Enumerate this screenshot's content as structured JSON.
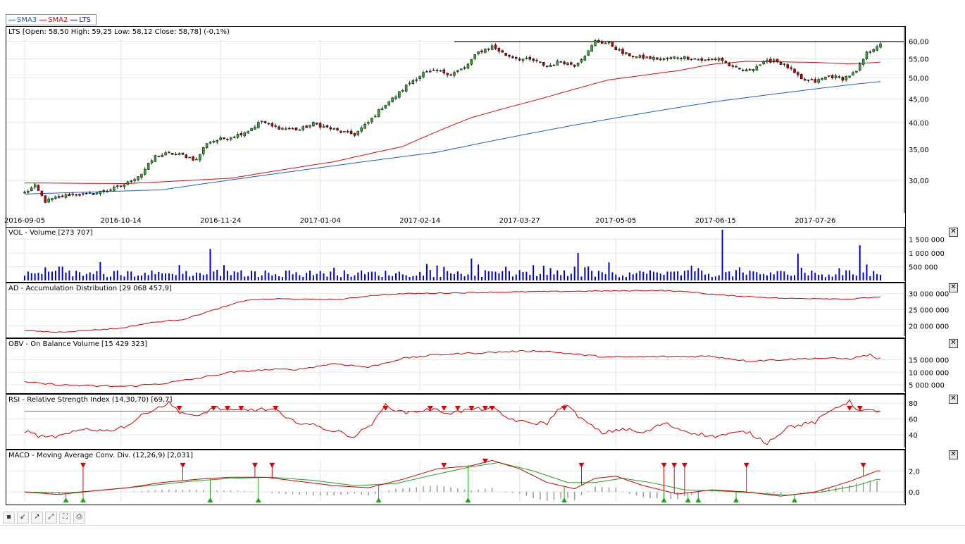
{
  "legend": [
    {
      "name": "SMA3",
      "color": "#1f5fbf"
    },
    {
      "name": "SMA2",
      "color": "#d01010"
    },
    {
      "name": "LTS",
      "color": "#1010a0"
    }
  ],
  "colors": {
    "up": "#33aa33",
    "down": "#cc0000",
    "sma_fast": "#1f5fbf",
    "sma_slow": "#d01010",
    "volume": "#0000cc",
    "line": "#cc0000",
    "macd_signal": "#22a022",
    "histogram": "#999999",
    "marker_up": "#22a022",
    "marker_down": "#dd0000"
  },
  "toolbar": {
    "icons": [
      "save-icon",
      "zoom-out-icon",
      "zoom-in-icon",
      "zoom-reset-icon",
      "fullscreen-icon",
      "print-icon"
    ]
  },
  "chart_data": [
    {
      "type": "candlestick",
      "title": "LTS [Open: 58,50  High: 59,25  Low: 58,12  Close: 58,78] (-0,1%)",
      "x_ticks": [
        "2016-09-05",
        "2016-10-14",
        "2016-11-24",
        "2017-01-04",
        "2017-02-14",
        "2017-03-27",
        "2017-05-05",
        "2017-06-15",
        "2017-07-26"
      ],
      "y_ticks": [
        "60,00",
        "55,00",
        "50,00",
        "45,00",
        "40,00",
        "35,00",
        "30,00"
      ],
      "y_scale": "log",
      "ylim": [
        25.5,
        64.5
      ],
      "resistance": 59.9,
      "close_anchors": [
        [
          0,
          28.2
        ],
        [
          3,
          29.1
        ],
        [
          6,
          27.0
        ],
        [
          10,
          27.6
        ],
        [
          14,
          28.0
        ],
        [
          18,
          27.9
        ],
        [
          22,
          28.3
        ],
        [
          26,
          28.8
        ],
        [
          30,
          29.6
        ],
        [
          34,
          31.0
        ],
        [
          38,
          33.8
        ],
        [
          42,
          34.3
        ],
        [
          46,
          34.0
        ],
        [
          50,
          33.2
        ],
        [
          53,
          36.2
        ],
        [
          57,
          36.8
        ],
        [
          61,
          37.4
        ],
        [
          65,
          38.4
        ],
        [
          69,
          40.3
        ],
        [
          72,
          39.2
        ],
        [
          76,
          38.8
        ],
        [
          80,
          38.6
        ],
        [
          84,
          39.8
        ],
        [
          88,
          39.0
        ],
        [
          92,
          38.2
        ],
        [
          96,
          37.7
        ],
        [
          100,
          40.0
        ],
        [
          104,
          43.2
        ],
        [
          108,
          45.6
        ],
        [
          112,
          48.8
        ],
        [
          116,
          51.2
        ],
        [
          120,
          51.7
        ],
        [
          124,
          51.0
        ],
        [
          128,
          52.5
        ],
        [
          132,
          56.8
        ],
        [
          136,
          58.5
        ],
        [
          140,
          56.0
        ],
        [
          144,
          55.0
        ],
        [
          148,
          54.5
        ],
        [
          152,
          53.0
        ],
        [
          156,
          54.3
        ],
        [
          160,
          53.3
        ],
        [
          164,
          57.0
        ],
        [
          166,
          60.0
        ],
        [
          170,
          59.3
        ],
        [
          174,
          56.5
        ],
        [
          178,
          55.5
        ],
        [
          182,
          55.2
        ],
        [
          186,
          54.8
        ],
        [
          190,
          55.5
        ],
        [
          194,
          55.2
        ],
        [
          198,
          54.5
        ],
        [
          202,
          55.2
        ],
        [
          206,
          52.5
        ],
        [
          210,
          51.7
        ],
        [
          214,
          53.5
        ],
        [
          218,
          54.8
        ],
        [
          222,
          52.7
        ],
        [
          226,
          49.5
        ],
        [
          230,
          49.0
        ],
        [
          234,
          50.5
        ],
        [
          238,
          49.8
        ],
        [
          242,
          51.5
        ],
        [
          245,
          56.5
        ],
        [
          248,
          58.7
        ]
      ],
      "series": [
        {
          "name": "SMA3",
          "color": "#1f5fbf",
          "anchors": [
            [
              0,
              28.0
            ],
            [
              40,
              28.6
            ],
            [
              80,
              31.5
            ],
            [
              120,
              34.5
            ],
            [
              160,
              39.5
            ],
            [
              200,
              44.3
            ],
            [
              240,
              48.3
            ],
            [
              248,
              49.0
            ]
          ]
        },
        {
          "name": "SMA2",
          "color": "#d01010",
          "anchors": [
            [
              0,
              29.6
            ],
            [
              30,
              29.5
            ],
            [
              60,
              30.3
            ],
            [
              90,
              32.9
            ],
            [
              110,
              35.5
            ],
            [
              130,
              41.0
            ],
            [
              150,
              45.0
            ],
            [
              170,
              49.5
            ],
            [
              190,
              51.8
            ],
            [
              200,
              53.5
            ],
            [
              210,
              54.3
            ],
            [
              230,
              54.0
            ],
            [
              240,
              53.6
            ],
            [
              248,
              54.0
            ]
          ]
        }
      ]
    },
    {
      "type": "bar",
      "title": "VOL - Volume [273 707]",
      "y_ticks": [
        "1 500 000",
        "1 000 000",
        "500 000"
      ],
      "ylim": [
        0,
        1900000
      ],
      "spikes": [
        [
          6,
          480000
        ],
        [
          54,
          1150000
        ],
        [
          130,
          800000
        ],
        [
          161,
          1000000
        ],
        [
          163,
          480000
        ],
        [
          203,
          1850000
        ],
        [
          225,
          980000
        ],
        [
          243,
          1280000
        ],
        [
          245,
          580000
        ]
      ]
    },
    {
      "type": "line",
      "title": "AD - Accumulation Distribution [29 068 457,9]",
      "y_ticks": [
        "30 000 000",
        "25 000 000",
        "20 000 000"
      ],
      "ylim": [
        17000000,
        33000000
      ],
      "anchors": [
        [
          0,
          18.5
        ],
        [
          10,
          18.0
        ],
        [
          20,
          18.6
        ],
        [
          30,
          19.2
        ],
        [
          40,
          21.0
        ],
        [
          50,
          22.0
        ],
        [
          60,
          25.0
        ],
        [
          70,
          28.0
        ],
        [
          80,
          28.4
        ],
        [
          90,
          28.2
        ],
        [
          100,
          28.2
        ],
        [
          110,
          29.5
        ],
        [
          120,
          30.0
        ],
        [
          140,
          30.3
        ],
        [
          160,
          30.6
        ],
        [
          180,
          30.8
        ],
        [
          200,
          31.0
        ],
        [
          210,
          30.5
        ],
        [
          220,
          29.5
        ],
        [
          240,
          28.5
        ],
        [
          250,
          28.5
        ],
        [
          260,
          28.3
        ],
        [
          270,
          29.0
        ]
      ]
    },
    {
      "type": "line",
      "title": "OBV - On Balance Volume [15 429 323]",
      "y_ticks": [
        "15 000 000",
        "10 000 000",
        "5 000 000"
      ],
      "ylim": [
        2500000,
        23000000
      ],
      "anchors": [
        [
          0,
          6.0
        ],
        [
          10,
          5.0
        ],
        [
          20,
          4.5
        ],
        [
          30,
          4.4
        ],
        [
          40,
          5.5
        ],
        [
          50,
          7.5
        ],
        [
          60,
          10.0
        ],
        [
          70,
          11.0
        ],
        [
          80,
          11.2
        ],
        [
          90,
          13.5
        ],
        [
          100,
          12.0
        ],
        [
          110,
          15.5
        ],
        [
          120,
          17.0
        ],
        [
          130,
          17.6
        ],
        [
          140,
          18.2
        ],
        [
          150,
          18.6
        ],
        [
          160,
          17.2
        ],
        [
          170,
          16.0
        ],
        [
          180,
          16.2
        ],
        [
          200,
          16.4
        ],
        [
          210,
          14.5
        ],
        [
          220,
          15.0
        ],
        [
          230,
          15.6
        ],
        [
          240,
          15.4
        ],
        [
          246,
          17.0
        ],
        [
          248,
          15.4
        ]
      ]
    },
    {
      "type": "line",
      "title": "RSI - Relative Strength Index (14,30,70) [69,7]",
      "y_ticks": [
        "80",
        "60",
        "40"
      ],
      "ylim": [
        25,
        90
      ],
      "threshold": 70,
      "overbought_markers": [
        45,
        55,
        59,
        63,
        73,
        105,
        118,
        122,
        126,
        130,
        134,
        136,
        157,
        240,
        243
      ],
      "anchors": [
        [
          0,
          45
        ],
        [
          6,
          36
        ],
        [
          12,
          40
        ],
        [
          18,
          48
        ],
        [
          24,
          45
        ],
        [
          30,
          52
        ],
        [
          36,
          70
        ],
        [
          42,
          80
        ],
        [
          45,
          70
        ],
        [
          50,
          62
        ],
        [
          55,
          75
        ],
        [
          60,
          70
        ],
        [
          66,
          72
        ],
        [
          73,
          72
        ],
        [
          76,
          60
        ],
        [
          84,
          52
        ],
        [
          90,
          45
        ],
        [
          96,
          38
        ],
        [
          102,
          58
        ],
        [
          105,
          78
        ],
        [
          110,
          68
        ],
        [
          118,
          72
        ],
        [
          124,
          68
        ],
        [
          130,
          72
        ],
        [
          136,
          74
        ],
        [
          140,
          62
        ],
        [
          146,
          55
        ],
        [
          152,
          55
        ],
        [
          157,
          80
        ],
        [
          162,
          60
        ],
        [
          168,
          42
        ],
        [
          174,
          48
        ],
        [
          180,
          42
        ],
        [
          186,
          55
        ],
        [
          192,
          45
        ],
        [
          200,
          38
        ],
        [
          210,
          44
        ],
        [
          216,
          30
        ],
        [
          222,
          50
        ],
        [
          230,
          56
        ],
        [
          236,
          75
        ],
        [
          240,
          82
        ],
        [
          243,
          70
        ]
      ]
    },
    {
      "type": "line",
      "title": "MACD - Moving Average Conv. Div. (12,26,9) [2,031]",
      "y_ticks": [
        "2,0",
        "0,0"
      ],
      "ylim": [
        -1.0,
        3.9
      ],
      "sell_markers": [
        [
          17,
          2.5
        ],
        [
          46,
          2.5
        ],
        [
          67,
          2.5
        ],
        [
          72,
          2.5
        ],
        [
          122,
          2.5
        ],
        [
          134,
          2.9
        ],
        [
          162,
          2.5
        ],
        [
          186,
          2.5
        ],
        [
          189,
          2.5
        ],
        [
          192,
          2.5
        ],
        [
          210,
          2.5
        ],
        [
          244,
          2.5
        ]
      ],
      "buy_markers": [
        12,
        17,
        54,
        68,
        103,
        129,
        157,
        186,
        193,
        196,
        207,
        224
      ],
      "macd_anchors": [
        [
          0,
          0.0
        ],
        [
          10,
          -0.25
        ],
        [
          20,
          0.1
        ],
        [
          30,
          0.4
        ],
        [
          40,
          0.9
        ],
        [
          50,
          1.2
        ],
        [
          60,
          1.4
        ],
        [
          70,
          1.4
        ],
        [
          80,
          1.0
        ],
        [
          90,
          0.6
        ],
        [
          100,
          0.4
        ],
        [
          110,
          1.2
        ],
        [
          120,
          2.2
        ],
        [
          130,
          2.5
        ],
        [
          136,
          3.0
        ],
        [
          144,
          2.2
        ],
        [
          152,
          0.9
        ],
        [
          160,
          0.3
        ],
        [
          166,
          1.3
        ],
        [
          172,
          1.5
        ],
        [
          180,
          0.6
        ],
        [
          190,
          -0.2
        ],
        [
          200,
          0.2
        ],
        [
          210,
          0.0
        ],
        [
          220,
          -0.4
        ],
        [
          230,
          0.0
        ],
        [
          240,
          1.0
        ],
        [
          248,
          2.0
        ]
      ],
      "signal_anchors": [
        [
          0,
          0.0
        ],
        [
          12,
          -0.1
        ],
        [
          24,
          0.2
        ],
        [
          36,
          0.6
        ],
        [
          48,
          1.0
        ],
        [
          60,
          1.3
        ],
        [
          72,
          1.4
        ],
        [
          84,
          1.1
        ],
        [
          96,
          0.6
        ],
        [
          108,
          0.8
        ],
        [
          120,
          1.7
        ],
        [
          130,
          2.4
        ],
        [
          138,
          2.8
        ],
        [
          148,
          2.0
        ],
        [
          158,
          0.9
        ],
        [
          166,
          0.9
        ],
        [
          174,
          1.3
        ],
        [
          182,
          0.9
        ],
        [
          192,
          0.2
        ],
        [
          202,
          0.1
        ],
        [
          212,
          -0.1
        ],
        [
          222,
          -0.3
        ],
        [
          232,
          0.0
        ],
        [
          242,
          0.6
        ],
        [
          248,
          1.2
        ]
      ]
    }
  ]
}
